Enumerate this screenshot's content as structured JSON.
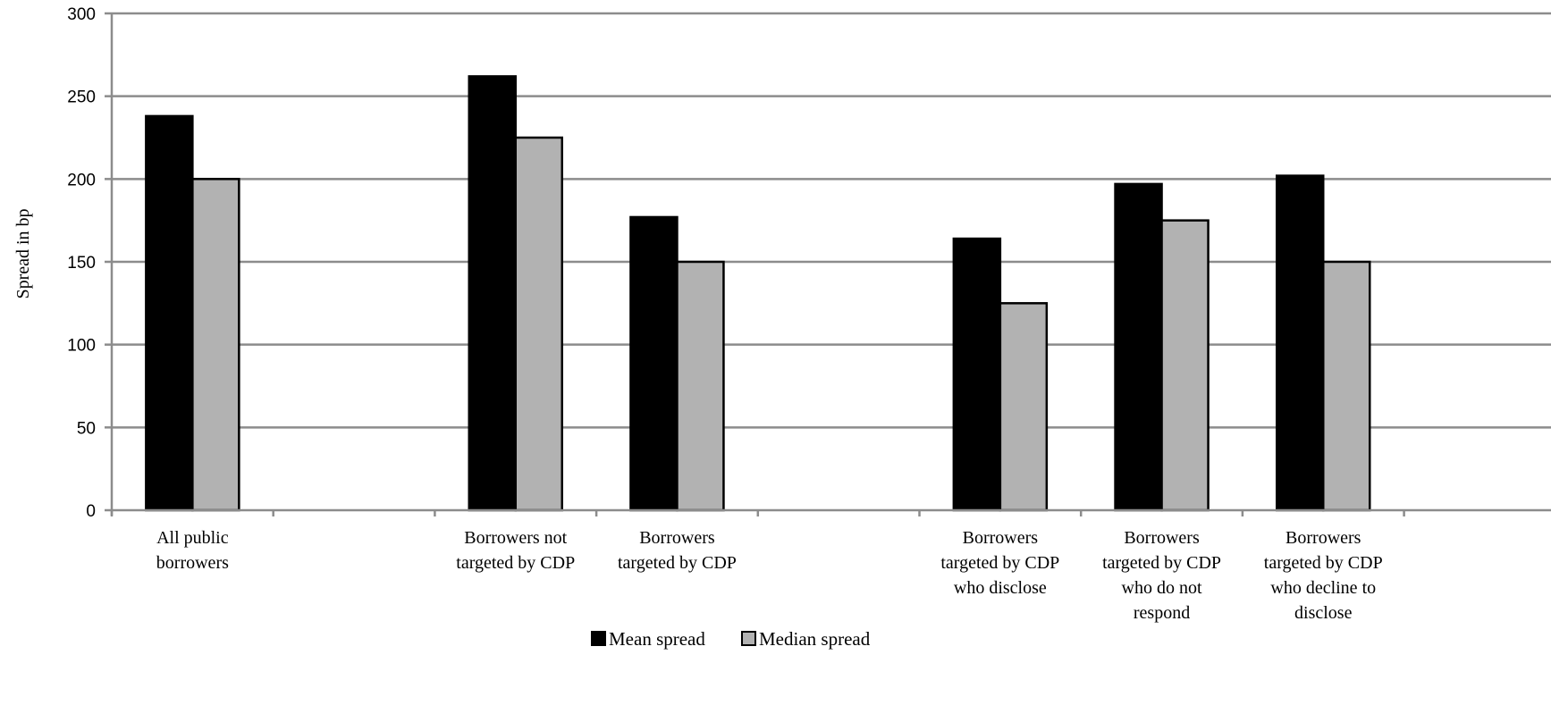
{
  "chart_data": {
    "type": "bar",
    "ylabel": "Spread in bp",
    "xlabel": "",
    "ylim": [
      0,
      300
    ],
    "yticks": [
      0,
      50,
      100,
      150,
      200,
      250,
      300
    ],
    "grid": true,
    "legend": "bottom-center",
    "categories": [
      [
        "All public",
        "borrowers"
      ],
      [
        "",
        ""
      ],
      [
        "Borrowers not",
        "targeted by CDP"
      ],
      [
        "Borrowers",
        "targeted by CDP"
      ],
      [
        "",
        ""
      ],
      [
        "Borrowers",
        "targeted by CDP",
        "who disclose"
      ],
      [
        "Borrowers",
        "targeted by CDP",
        "who do not",
        "respond"
      ],
      [
        "Borrowers",
        "targeted by CDP",
        "who decline to",
        "disclose"
      ]
    ],
    "series": [
      {
        "name": "Mean spread",
        "color": "#000000",
        "values": [
          238,
          null,
          262,
          177,
          null,
          164,
          197,
          202
        ]
      },
      {
        "name": "Median spread",
        "color": "#b2b2b2",
        "values": [
          200,
          null,
          225,
          150,
          null,
          125,
          175,
          150
        ]
      }
    ]
  }
}
